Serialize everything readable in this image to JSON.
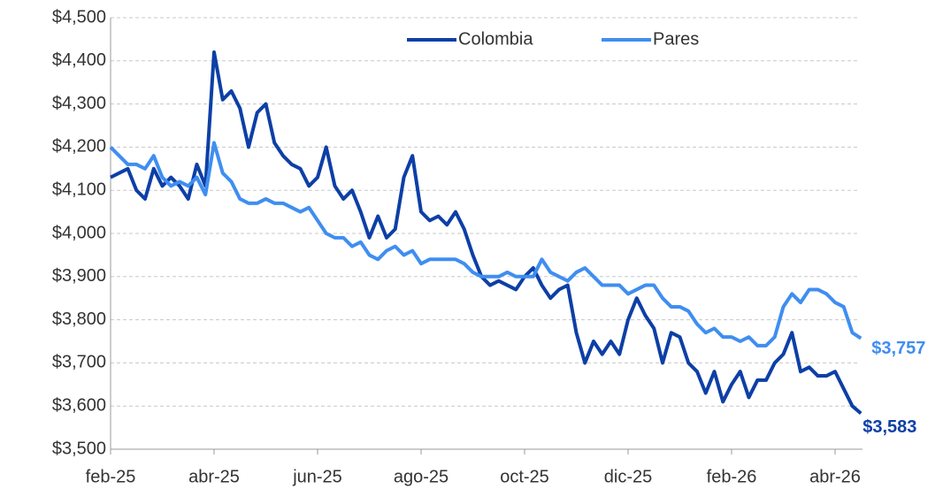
{
  "chart_data": {
    "type": "line",
    "categories": [
      "feb-25",
      null,
      null,
      null,
      null,
      null,
      null,
      null,
      null,
      null,
      null,
      null,
      "abr-25",
      null,
      null,
      null,
      null,
      null,
      null,
      null,
      null,
      null,
      null,
      null,
      "jun-25",
      null,
      null,
      null,
      null,
      null,
      null,
      null,
      null,
      null,
      null,
      null,
      "ago-25",
      null,
      null,
      null,
      null,
      null,
      null,
      null,
      null,
      null,
      null,
      null,
      "oct-25",
      null,
      null,
      null,
      null,
      null,
      null,
      null,
      null,
      null,
      null,
      null,
      "dic-25",
      null,
      null,
      null,
      null,
      null,
      null,
      null,
      null,
      null,
      null,
      null,
      "feb-26",
      null,
      null,
      null,
      null,
      null,
      null,
      null,
      null,
      null,
      null,
      null,
      "abr-26",
      null,
      null,
      null
    ],
    "series": [
      {
        "name": "Colombia",
        "color": "#0d3fa6",
        "values": [
          4130,
          4140,
          4150,
          4100,
          4080,
          4150,
          4110,
          4130,
          4110,
          4080,
          4160,
          4110,
          4420,
          4310,
          4330,
          4290,
          4200,
          4280,
          4300,
          4210,
          4180,
          4160,
          4150,
          4110,
          4130,
          4200,
          4110,
          4080,
          4100,
          4050,
          3990,
          4040,
          3990,
          4010,
          4130,
          4180,
          4050,
          4030,
          4040,
          4020,
          4050,
          4010,
          3950,
          3900,
          3880,
          3890,
          3880,
          3870,
          3900,
          3920,
          3880,
          3850,
          3870,
          3880,
          3770,
          3700,
          3750,
          3720,
          3750,
          3720,
          3800,
          3850,
          3810,
          3780,
          3700,
          3770,
          3760,
          3700,
          3680,
          3630,
          3680,
          3610,
          3650,
          3680,
          3620,
          3660,
          3660,
          3700,
          3720,
          3770,
          3680,
          3690,
          3670,
          3670,
          3680,
          3640,
          3600,
          3583
        ],
        "value_labels": [
          null,
          null,
          null,
          null,
          null,
          null,
          null,
          null,
          null,
          null,
          null,
          null,
          null,
          null,
          null,
          null,
          null,
          null,
          null,
          null,
          null,
          null,
          null,
          null,
          null,
          null,
          null,
          null,
          null,
          null,
          null,
          null,
          null,
          null,
          null,
          null,
          null,
          null,
          null,
          null,
          null,
          null,
          null,
          null,
          null,
          null,
          null,
          null,
          null,
          null,
          null,
          null,
          null,
          null,
          null,
          null,
          null,
          null,
          null,
          null,
          null,
          null,
          null,
          null,
          null,
          null,
          null,
          null,
          null,
          null,
          null,
          null,
          null,
          null,
          null,
          null,
          null,
          null,
          null,
          null,
          null,
          null,
          null,
          null,
          null,
          null,
          null,
          "$3,583"
        ]
      },
      {
        "name": "Pares",
        "color": "#3f8ef0",
        "values": [
          4200,
          4180,
          4160,
          4160,
          4150,
          4180,
          4130,
          4110,
          4120,
          4110,
          4130,
          4090,
          4210,
          4140,
          4120,
          4080,
          4070,
          4070,
          4080,
          4070,
          4070,
          4060,
          4050,
          4060,
          4030,
          4000,
          3990,
          3990,
          3970,
          3980,
          3950,
          3940,
          3960,
          3970,
          3950,
          3960,
          3930,
          3940,
          3940,
          3940,
          3940,
          3930,
          3910,
          3900,
          3900,
          3900,
          3910,
          3900,
          3900,
          3900,
          3940,
          3910,
          3900,
          3890,
          3910,
          3920,
          3900,
          3880,
          3880,
          3880,
          3860,
          3870,
          3880,
          3880,
          3850,
          3830,
          3830,
          3820,
          3790,
          3770,
          3780,
          3760,
          3760,
          3750,
          3760,
          3740,
          3740,
          3760,
          3830,
          3860,
          3840,
          3870,
          3870,
          3860,
          3840,
          3830,
          3770,
          3757
        ],
        "value_labels": [
          null,
          null,
          null,
          null,
          null,
          null,
          null,
          null,
          null,
          null,
          null,
          null,
          null,
          null,
          null,
          null,
          null,
          null,
          null,
          null,
          null,
          null,
          null,
          null,
          null,
          null,
          null,
          null,
          null,
          null,
          null,
          null,
          null,
          null,
          null,
          null,
          null,
          null,
          null,
          null,
          null,
          null,
          null,
          null,
          null,
          null,
          null,
          null,
          null,
          null,
          null,
          null,
          null,
          null,
          null,
          null,
          null,
          null,
          null,
          null,
          null,
          null,
          null,
          null,
          null,
          null,
          null,
          null,
          null,
          null,
          null,
          null,
          null,
          null,
          null,
          null,
          null,
          null,
          null,
          null,
          null,
          null,
          null,
          null,
          null,
          null,
          null,
          "$3,757"
        ]
      }
    ],
    "ylim": [
      3500,
      4500
    ],
    "yticks": [
      {
        "value": 3500,
        "label": "$3,500"
      },
      {
        "value": 3600,
        "label": "$3,600"
      },
      {
        "value": 3700,
        "label": "$3,700"
      },
      {
        "value": 3800,
        "label": "$3,800"
      },
      {
        "value": 3900,
        "label": "$3,900"
      },
      {
        "value": 4000,
        "label": "$4,000"
      },
      {
        "value": 4100,
        "label": "$4,100"
      },
      {
        "value": 4200,
        "label": "$4,200"
      },
      {
        "value": 4300,
        "label": "$4,300"
      },
      {
        "value": 4400,
        "label": "$4,400"
      },
      {
        "value": 4500,
        "label": "$4,500"
      }
    ],
    "grid": true,
    "legend": "top"
  }
}
